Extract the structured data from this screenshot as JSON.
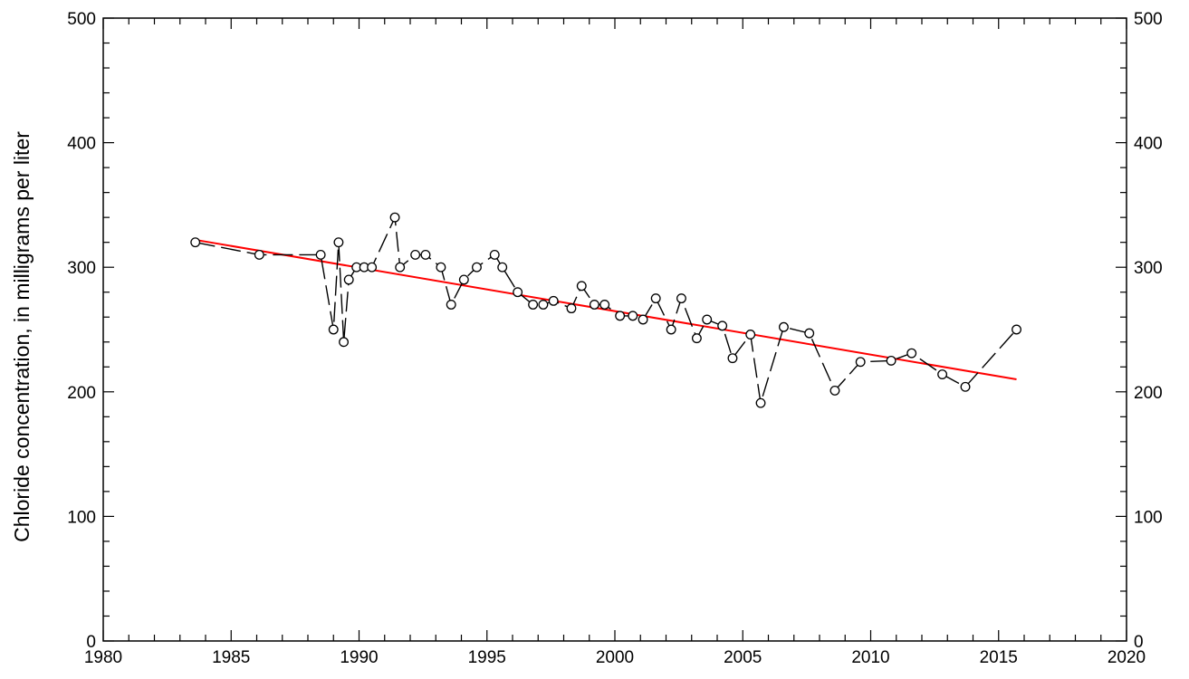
{
  "chart_data": {
    "type": "line",
    "title": "",
    "xlabel": "",
    "ylabel": "Chloride concentration, in milligrams per liter",
    "xlim": [
      1980,
      2020
    ],
    "ylim": [
      0,
      500
    ],
    "x_ticks": [
      1980,
      1985,
      1990,
      1995,
      2000,
      2005,
      2010,
      2015,
      2020
    ],
    "y_ticks": [
      0,
      100,
      200,
      300,
      400,
      500
    ],
    "x_tick_labels": [
      "1980",
      "1985",
      "1990",
      "1995",
      "2000",
      "2005",
      "2010",
      "2015",
      "2020"
    ],
    "y_tick_labels": [
      "0",
      "100",
      "200",
      "300",
      "400",
      "500"
    ],
    "grid": false,
    "right_axis_labels": true,
    "series": [
      {
        "style": "dashed line with open circle markers",
        "color": "#000000",
        "points": [
          [
            1983.6,
            320
          ],
          [
            1986.1,
            310
          ],
          [
            1988.5,
            310
          ],
          [
            1989.0,
            250
          ],
          [
            1989.2,
            320
          ],
          [
            1989.4,
            240
          ],
          [
            1989.6,
            290
          ],
          [
            1989.9,
            300
          ],
          [
            1990.2,
            300
          ],
          [
            1990.5,
            300
          ],
          [
            1991.4,
            340
          ],
          [
            1991.6,
            300
          ],
          [
            1992.2,
            310
          ],
          [
            1992.6,
            310
          ],
          [
            1993.2,
            300
          ],
          [
            1993.6,
            270
          ],
          [
            1994.1,
            290
          ],
          [
            1994.6,
            300
          ],
          [
            1995.3,
            310
          ],
          [
            1995.6,
            300
          ],
          [
            1996.2,
            280
          ],
          [
            1996.8,
            270
          ],
          [
            1997.2,
            270
          ],
          [
            1997.6,
            273
          ],
          [
            1998.3,
            267
          ],
          [
            1998.7,
            285
          ],
          [
            1999.2,
            270
          ],
          [
            1999.6,
            270
          ],
          [
            2000.2,
            261
          ],
          [
            2000.7,
            261
          ],
          [
            2001.1,
            258
          ],
          [
            2001.6,
            275
          ],
          [
            2002.2,
            250
          ],
          [
            2002.6,
            275
          ],
          [
            2003.2,
            243
          ],
          [
            2003.6,
            258
          ],
          [
            2004.2,
            253
          ],
          [
            2004.6,
            227
          ],
          [
            2005.3,
            246
          ],
          [
            2005.7,
            191
          ],
          [
            2006.6,
            252
          ],
          [
            2007.6,
            247
          ],
          [
            2008.6,
            201
          ],
          [
            2009.6,
            224
          ],
          [
            2010.8,
            225
          ],
          [
            2011.6,
            231
          ],
          [
            2012.8,
            214
          ],
          [
            2013.7,
            204
          ],
          [
            2015.7,
            250
          ]
        ]
      },
      {
        "style": "trend line",
        "color": "#ff0000",
        "points": [
          [
            1983.6,
            322
          ],
          [
            2015.7,
            210
          ]
        ]
      }
    ]
  }
}
